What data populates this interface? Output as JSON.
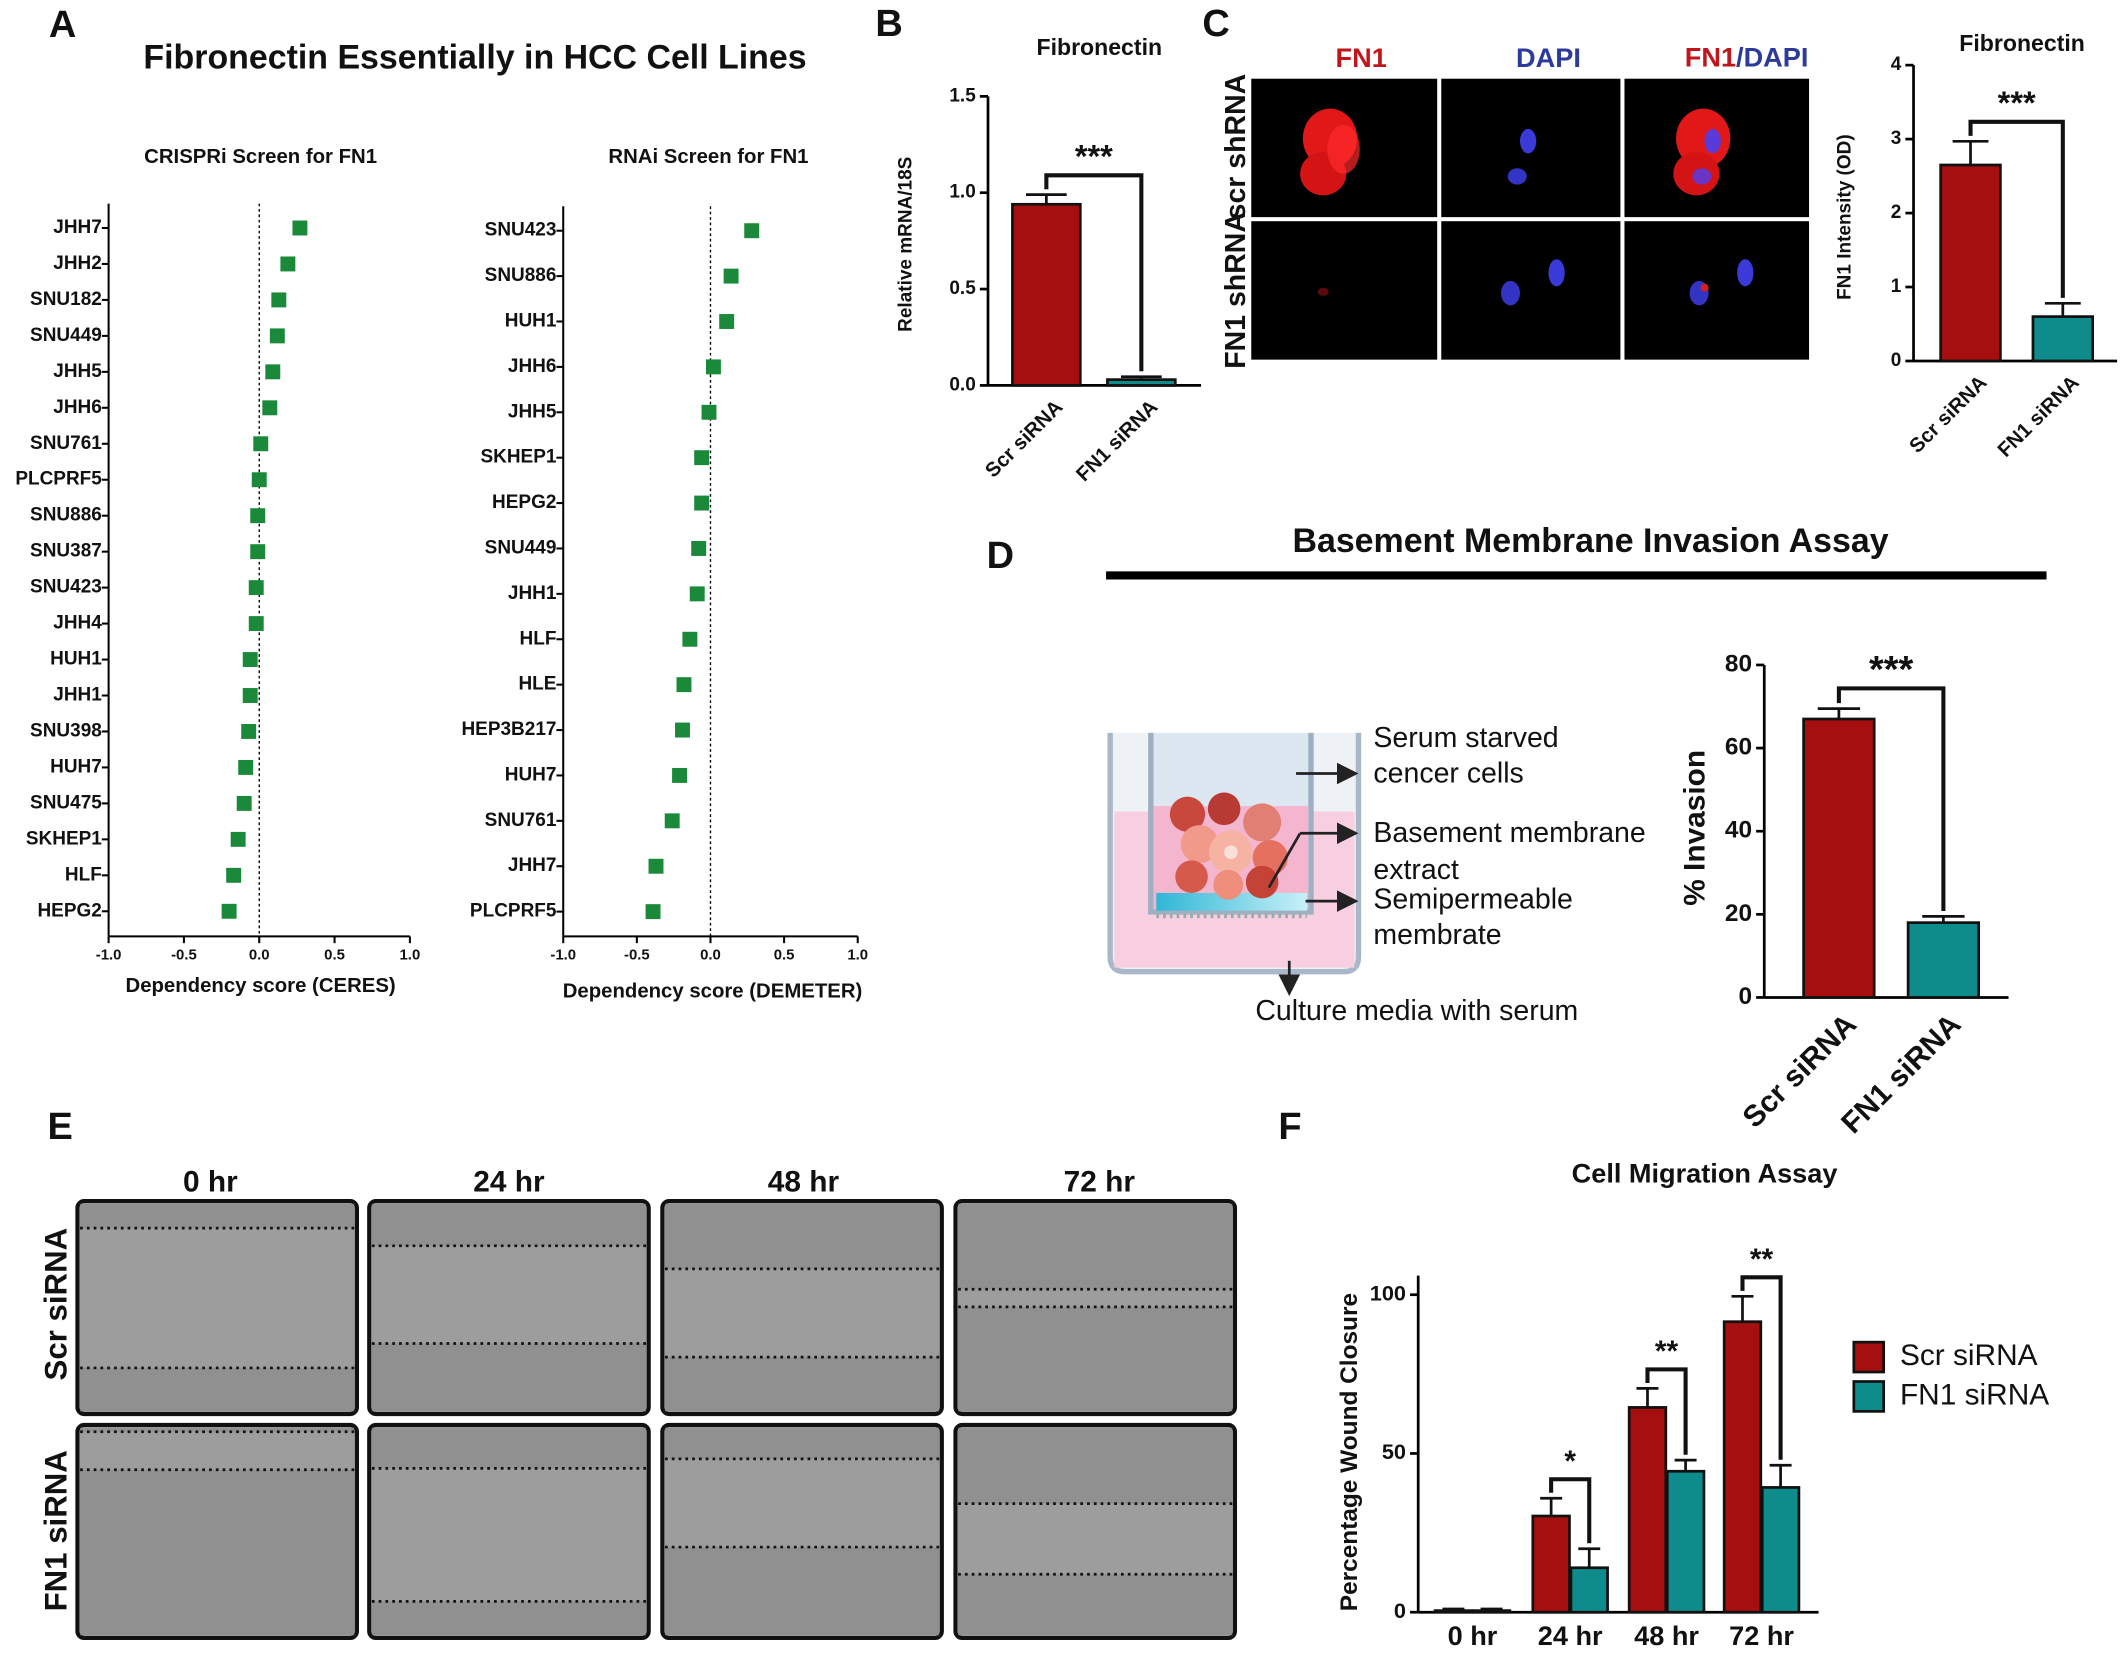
{
  "panel_letters": [
    "A",
    "B",
    "C",
    "D",
    "E",
    "F"
  ],
  "figure_a_title": "Fibronectin Essentially in HCC Cell Lines",
  "panel_c_images": {
    "column_labels": [
      "FN1",
      "DAPI"
    ],
    "merge_label": [
      "FN1",
      "/DAPI"
    ],
    "row_labels": [
      "scr shRNA",
      "FN1 shRNA"
    ]
  },
  "panel_d": {
    "title": "Basement Membrane Invasion Assay",
    "diagram_labels": [
      "Serum starved",
      "cencer cells",
      "Basement membrane",
      "extract",
      "Semipermeable",
      "membrate",
      "Culture media with serum"
    ]
  },
  "panel_e": {
    "column_labels": [
      "0 hr",
      "24 hr",
      "48 hr",
      "72 hr"
    ],
    "row_labels": [
      "Scr siRNA",
      "FN1 siRNA"
    ]
  },
  "chart_data": [
    {
      "type": "dot",
      "title": "CRISPRi Screen for FN1",
      "x_label": "Dependency score (CERES)",
      "color": "#1a8a3a",
      "categories": [
        "JHH7",
        "JHH2",
        "SNU182",
        "SNU449",
        "JHH5",
        "JHH6",
        "SNU761",
        "PLCPRF5",
        "SNU886",
        "SNU387",
        "SNU423",
        "JHH4",
        "HUH1",
        "JHH1",
        "SNU398",
        "HUH7",
        "SNU475",
        "SKHEP1",
        "HLF",
        "HEPG2"
      ],
      "values": [
        0.27,
        0.19,
        0.13,
        0.12,
        0.09,
        0.07,
        0.01,
        0.0,
        -0.01,
        -0.01,
        -0.02,
        -0.02,
        -0.06,
        -0.06,
        -0.07,
        -0.09,
        -0.1,
        -0.14,
        -0.17,
        -0.2
      ],
      "xlim": [
        -1,
        1
      ],
      "xticks": [
        {
          "value": -1,
          "label": "-1.0"
        },
        -0.5,
        {
          "value": 0,
          "label": "0.0"
        },
        0.5,
        {
          "value": 1,
          "label": "1.0"
        }
      ]
    },
    {
      "type": "dot",
      "title": "RNAi Screen for FN1",
      "x_label": "Dependency score (DEMETER)",
      "color": "#1a8a3a",
      "categories": [
        "SNU423",
        "SNU886",
        "HUH1",
        "JHH6",
        "JHH5",
        "SKHEP1",
        "HEPG2",
        "SNU449",
        "JHH1",
        "HLF",
        "HLE",
        "HEP3B217",
        "HUH7",
        "SNU761",
        "JHH7",
        "PLCPRF5"
      ],
      "values": [
        0.28,
        0.14,
        0.11,
        0.02,
        -0.01,
        -0.06,
        -0.06,
        -0.08,
        -0.09,
        -0.14,
        -0.18,
        -0.19,
        -0.21,
        -0.26,
        -0.37,
        -0.39
      ],
      "xlim": [
        -1,
        1
      ],
      "xticks": [
        {
          "value": -1,
          "label": "-1.0"
        },
        -0.5,
        {
          "value": 0,
          "label": "0.0"
        },
        0.5,
        {
          "value": 1,
          "label": "1.0"
        }
      ]
    },
    {
      "type": "bar",
      "title": "Fibronectin",
      "y_label": "Relative mRNA/18S",
      "categories": [
        "Scr siRNA",
        "FN1 siRNA"
      ],
      "values": [
        0.94,
        0.03
      ],
      "errors": [
        0.05,
        0.015
      ],
      "colors": [
        "#a50f10",
        "#0e8b8b"
      ],
      "ylim": [
        0,
        1.5
      ],
      "yticks": [
        {
          "value": 0,
          "label": "0.0"
        },
        0.5,
        {
          "value": 1,
          "label": "1.0"
        },
        1.5
      ],
      "annotation": "***"
    },
    {
      "type": "bar",
      "title": "Fibronectin",
      "y_label": "FN1 Intensity (OD)",
      "categories": [
        "Scr siRNA",
        "FN1 siRNA"
      ],
      "values": [
        2.65,
        0.6
      ],
      "errors": [
        0.32,
        0.18
      ],
      "colors": [
        "#a50f10",
        "#0e8b8b"
      ],
      "ylim": [
        0,
        4
      ],
      "yticks": [
        0,
        1,
        2,
        3,
        4
      ],
      "annotation": "***"
    },
    {
      "type": "bar",
      "y_label": "% Invasion",
      "categories": [
        "Scr siRNA",
        "FN1 siRNA"
      ],
      "values": [
        67,
        18
      ],
      "errors": [
        2.5,
        1.5
      ],
      "colors": [
        "#a50f10",
        "#0e8b8b"
      ],
      "ylim": [
        0,
        80
      ],
      "yticks": [
        0,
        20,
        40,
        60,
        80
      ],
      "annotation": "***"
    },
    {
      "type": "bar",
      "title": "Cell Migration Assay",
      "y_label": "Percentage Wound Closure",
      "categories": [
        "0 hr",
        "24 hr",
        "48 hr",
        "72 hr"
      ],
      "series": [
        {
          "name": "Scr siRNA",
          "color": "#a50f10",
          "values": [
            0.5,
            30.3,
            64.5,
            91.5
          ],
          "errors": [
            0.5,
            5.6,
            6,
            8
          ]
        },
        {
          "name": "FN1 siRNA",
          "color": "#0e8b8b",
          "values": [
            0.5,
            14,
            44.4,
            39.3
          ],
          "errors": [
            0.5,
            6,
            3.5,
            7
          ]
        }
      ],
      "ylim": [
        0,
        106
      ],
      "yticks": [
        0,
        50,
        100
      ],
      "annotations": [
        null,
        "*",
        "**",
        "**"
      ]
    }
  ]
}
